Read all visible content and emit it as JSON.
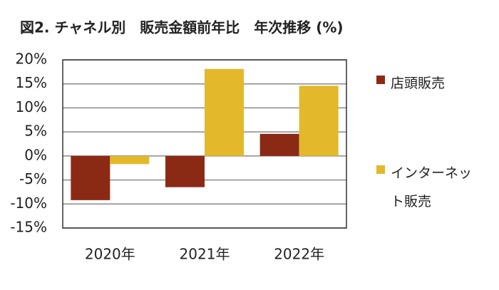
{
  "chart_data": {
    "type": "bar",
    "title": "図2. チャネル別　販売金額前年比　年次推移 (%)",
    "categories": [
      "2020年",
      "2021年",
      "2022年"
    ],
    "series": [
      {
        "name": "店頭販売",
        "color": "#8b2a14",
        "values": [
          -9.2,
          -6.5,
          4.6
        ]
      },
      {
        "name": "インターネット販売",
        "color": "#e3b82b",
        "values": [
          -1.7,
          18.1,
          14.6
        ]
      }
    ],
    "ylim": [
      -15,
      20
    ],
    "yticks": [
      {
        "value": -15,
        "label": "-15%"
      },
      {
        "value": -10,
        "label": "-10%"
      },
      {
        "value": -5,
        "label": "-5%"
      },
      {
        "value": 0,
        "label": "0%"
      },
      {
        "value": 5,
        "label": "5%"
      },
      {
        "value": 10,
        "label": "10%"
      },
      {
        "value": 15,
        "label": "15%"
      },
      {
        "value": 20,
        "label": "20%"
      }
    ],
    "grid": true
  }
}
